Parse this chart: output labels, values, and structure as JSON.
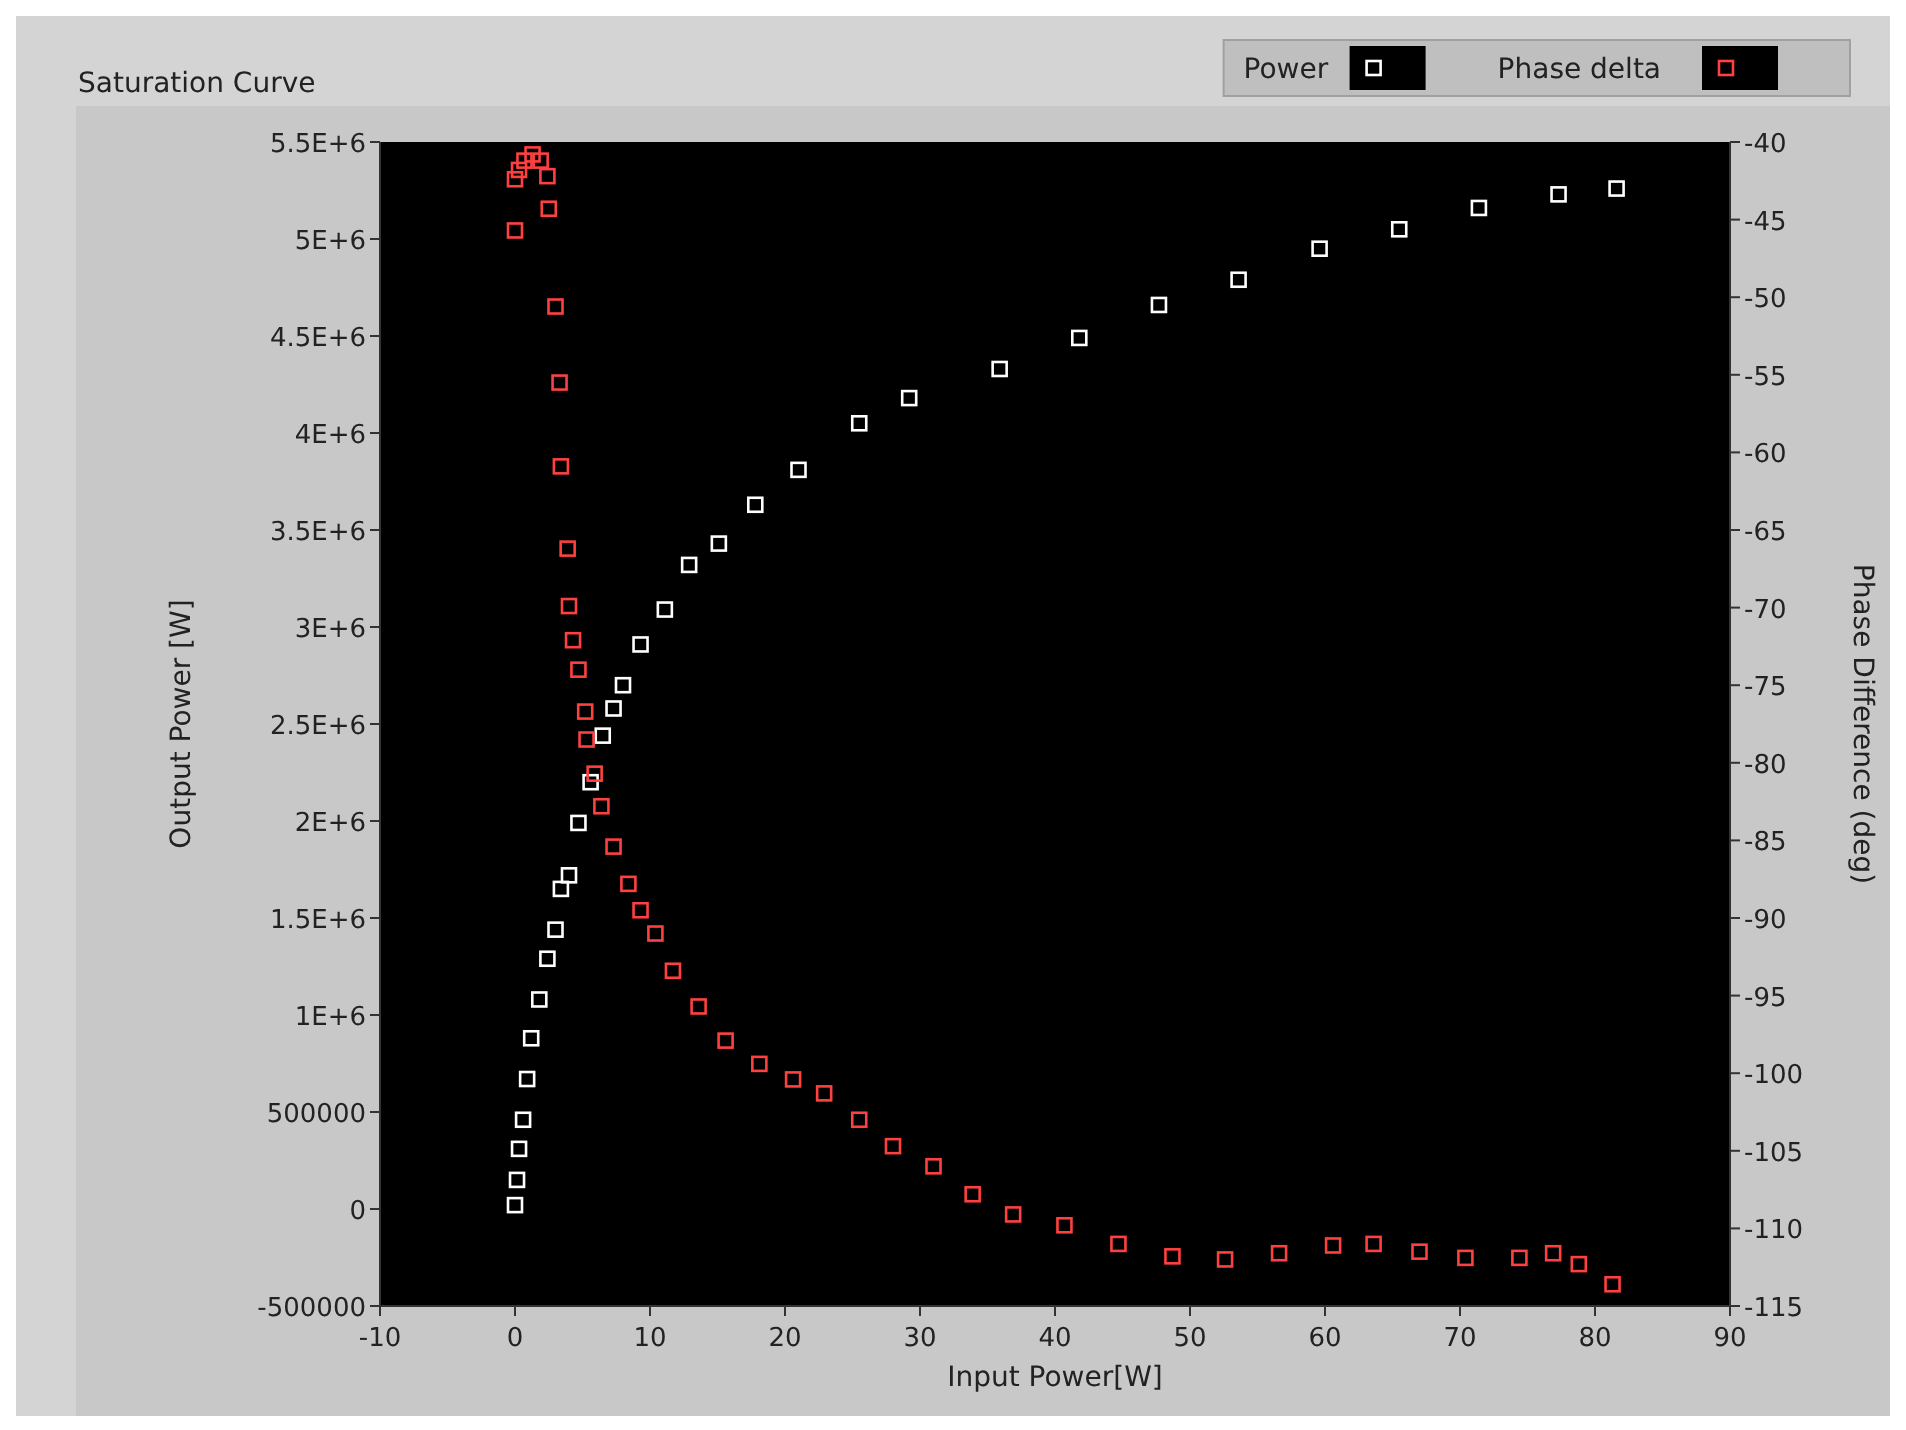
{
  "chart_data": {
    "type": "scatter",
    "title": "Saturation Curve",
    "xlabel": "Input Power[W]",
    "ylabel": "Output Power [W]",
    "y2label": "Phase Difference (deg)",
    "xlim": [
      -10,
      90
    ],
    "xticks": [
      -10,
      0,
      10,
      20,
      30,
      40,
      50,
      60,
      70,
      80,
      90
    ],
    "ylim": [
      -500000,
      5500000
    ],
    "yticks": [
      {
        "value": -500000,
        "label": "-500000"
      },
      0,
      {
        "value": 500000,
        "label": "500000"
      },
      {
        "value": 1000000,
        "label": "1E+6"
      },
      {
        "value": 1500000,
        "label": "1.5E+6"
      },
      {
        "value": 2000000,
        "label": "2E+6"
      },
      {
        "value": 2500000,
        "label": "2.5E+6"
      },
      {
        "value": 3000000,
        "label": "3E+6"
      },
      {
        "value": 3500000,
        "label": "3.5E+6"
      },
      {
        "value": 4000000,
        "label": "4E+6"
      },
      {
        "value": 4500000,
        "label": "4.5E+6"
      },
      {
        "value": 5000000,
        "label": "5E+6"
      },
      {
        "value": 5500000,
        "label": "5.5E+6"
      }
    ],
    "y2lim": [
      -115,
      -40
    ],
    "y2ticks": [
      -115,
      -110,
      -105,
      -100,
      -95,
      -90,
      -85,
      -80,
      -75,
      -70,
      -65,
      -60,
      -55,
      -50,
      -45,
      -40
    ],
    "marker": "square",
    "grid": false,
    "legend": "top right",
    "series": [
      {
        "name": "Power",
        "color": "#ffffff",
        "x": [
          0,
          0.15,
          0.3,
          0.6,
          0.9,
          1.2,
          1.8,
          2.4,
          3.0,
          3.4,
          4.0,
          4.7,
          5.6,
          6.5,
          7.3,
          8.0,
          9.3,
          11.1,
          12.9,
          15.1,
          17.8,
          21.0,
          25.5,
          29.2,
          35.9,
          41.8,
          47.7,
          53.6,
          59.6,
          65.5,
          71.4,
          77.3,
          81.6
        ],
        "values": [
          20000,
          150000,
          310000,
          460000,
          670000,
          880000,
          1080000,
          1290000,
          1440000,
          1650000,
          1720000,
          1990000,
          2200000,
          2440000,
          2580000,
          2700000,
          2910000,
          3090000,
          3320000,
          3430000,
          3630000,
          3810000,
          4050000,
          4180000,
          4330000,
          4490000,
          4660000,
          4790000,
          4950000,
          5050000,
          5160000,
          5230000,
          5260000
        ]
      },
      {
        "name": "Phase delta",
        "color": "#ff4040",
        "axis": "y2",
        "x": [
          0,
          0,
          0.3,
          0.7,
          1.3,
          1.9,
          2.4,
          2.5,
          3.0,
          3.3,
          3.4,
          3.9,
          4.0,
          4.3,
          4.7,
          5.2,
          5.3,
          5.9,
          6.4,
          7.3,
          8.4,
          9.3,
          10.4,
          11.7,
          13.6,
          15.6,
          18.1,
          20.6,
          22.9,
          25.5,
          28.0,
          31.0,
          33.9,
          36.9,
          40.7,
          44.7,
          48.7,
          52.6,
          56.6,
          60.6,
          63.6,
          67.0,
          70.4,
          74.4,
          76.9,
          78.8,
          81.3
        ],
        "values": [
          -45.7,
          -42.4,
          -41.8,
          -41.2,
          -40.8,
          -41.2,
          -42.2,
          -44.3,
          -50.6,
          -55.5,
          -60.9,
          -66.2,
          -69.9,
          -72.1,
          -74.0,
          -76.7,
          -78.5,
          -80.7,
          -82.8,
          -85.4,
          -87.8,
          -89.5,
          -91.0,
          -93.4,
          -95.7,
          -97.9,
          -99.4,
          -100.4,
          -101.3,
          -103.0,
          -104.7,
          -106.0,
          -107.8,
          -109.1,
          -109.8,
          -111.0,
          -111.8,
          -112.0,
          -111.6,
          -111.1,
          -111.0,
          -111.5,
          -111.9,
          -111.9,
          -111.6,
          -112.3,
          -113.6
        ]
      }
    ]
  }
}
